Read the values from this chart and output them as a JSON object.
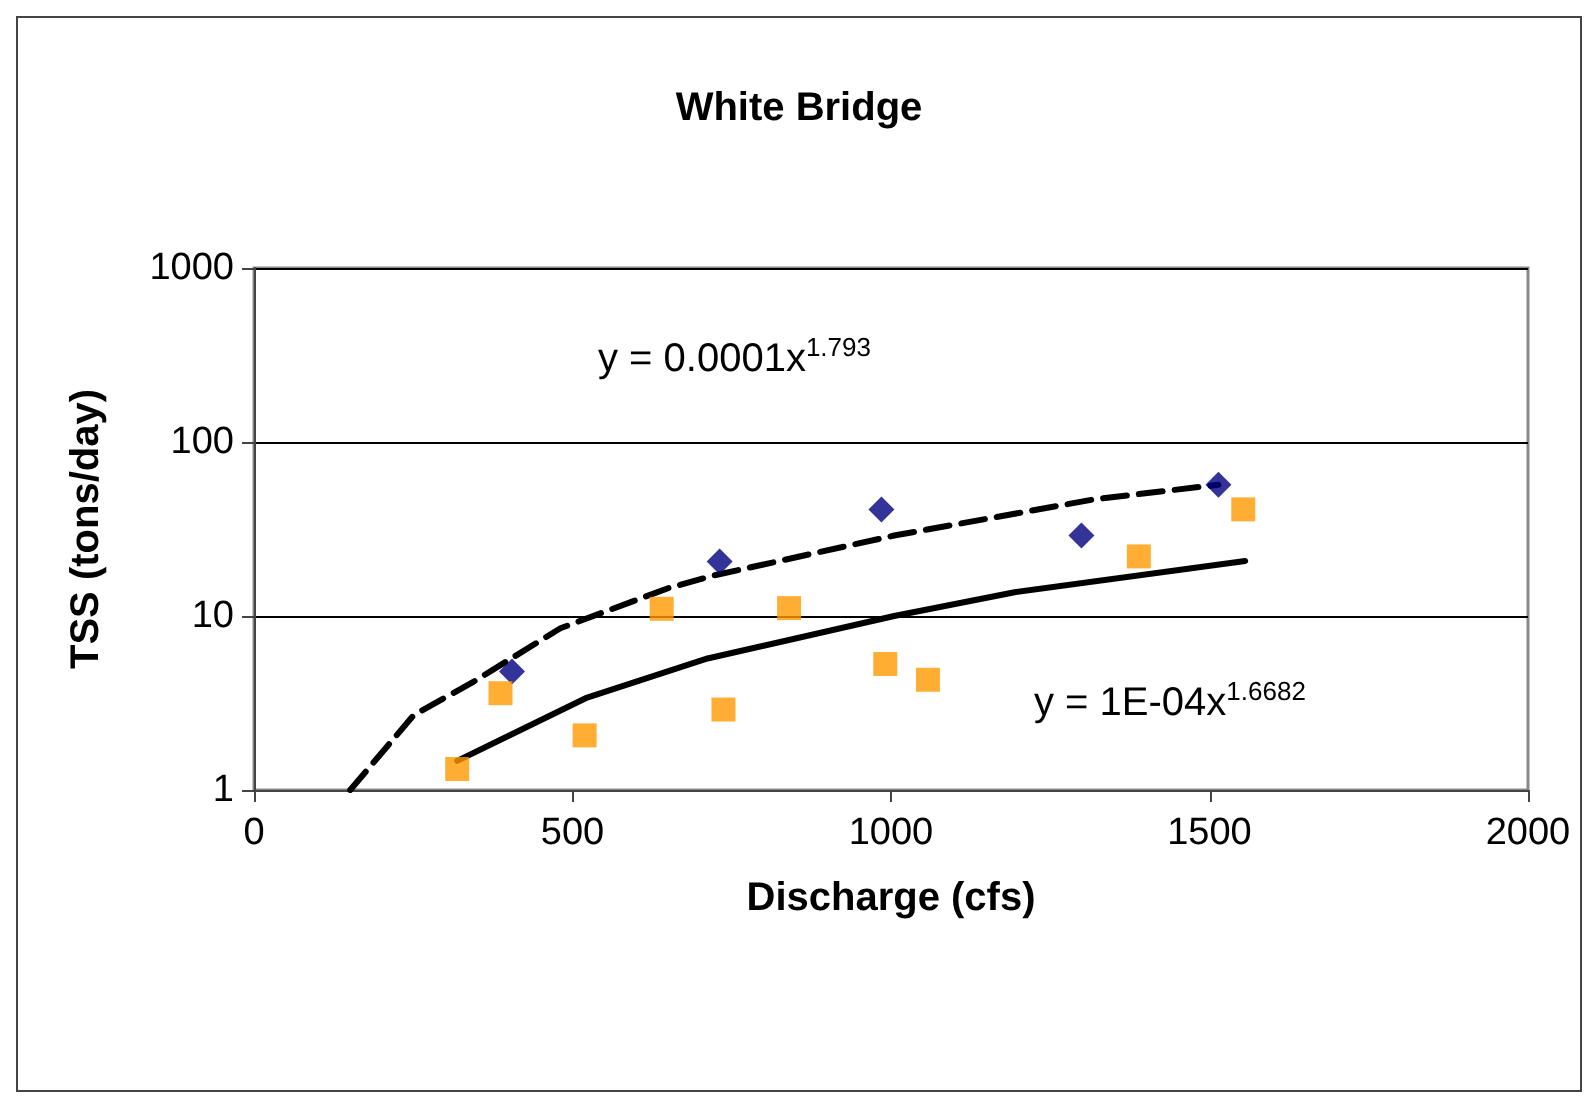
{
  "chart_data": {
    "type": "scatter",
    "title": "White Bridge",
    "xlabel": "Discharge (cfs)",
    "ylabel": "TSS (tons/day)",
    "xlim": [
      0,
      2000
    ],
    "xticks": [
      0,
      500,
      1000,
      1500,
      2000
    ],
    "ylim": [
      1,
      1000
    ],
    "yticks": [
      1,
      10,
      100,
      1000
    ],
    "log": "y",
    "grid": "y",
    "annotations": [
      "y = 0.0001x$^{1.793}$",
      "y = 1E-04x$^{1.6682}$"
    ],
    "series": [
      {
        "marker": "diamond",
        "color": "#000080",
        "x": [
          405,
          731,
          985,
          1299,
          1514
        ],
        "values": [
          4.8,
          20.6,
          41,
          29,
          56.8
        ]
      },
      {
        "marker": "square",
        "color": "#ff9900",
        "x": [
          319,
          387,
          519,
          640,
          737,
          840,
          991,
          1058,
          1389,
          1553
        ],
        "values": [
          1.32,
          3.6,
          2.06,
          11,
          2.9,
          11.1,
          5.3,
          4.3,
          22,
          41
        ]
      },
      {
        "type": "line",
        "marker": "none",
        "line_style": "dashed",
        "color": "#000000",
        "x": [
          151,
          251,
          345,
          481,
          649,
          722,
          1005,
          1320,
          1514
        ],
        "values": [
          1,
          2.7,
          4.2,
          8.5,
          14.4,
          17.1,
          29,
          46.9,
          56.8
        ]
      },
      {
        "type": "line",
        "marker": "none",
        "line_style": "solid",
        "color": "#000000",
        "x": [
          319,
          523,
          712,
          1005,
          1194,
          1556
        ],
        "values": [
          1.47,
          3.4,
          5.7,
          10,
          13.7,
          20.7
        ]
      }
    ]
  }
}
